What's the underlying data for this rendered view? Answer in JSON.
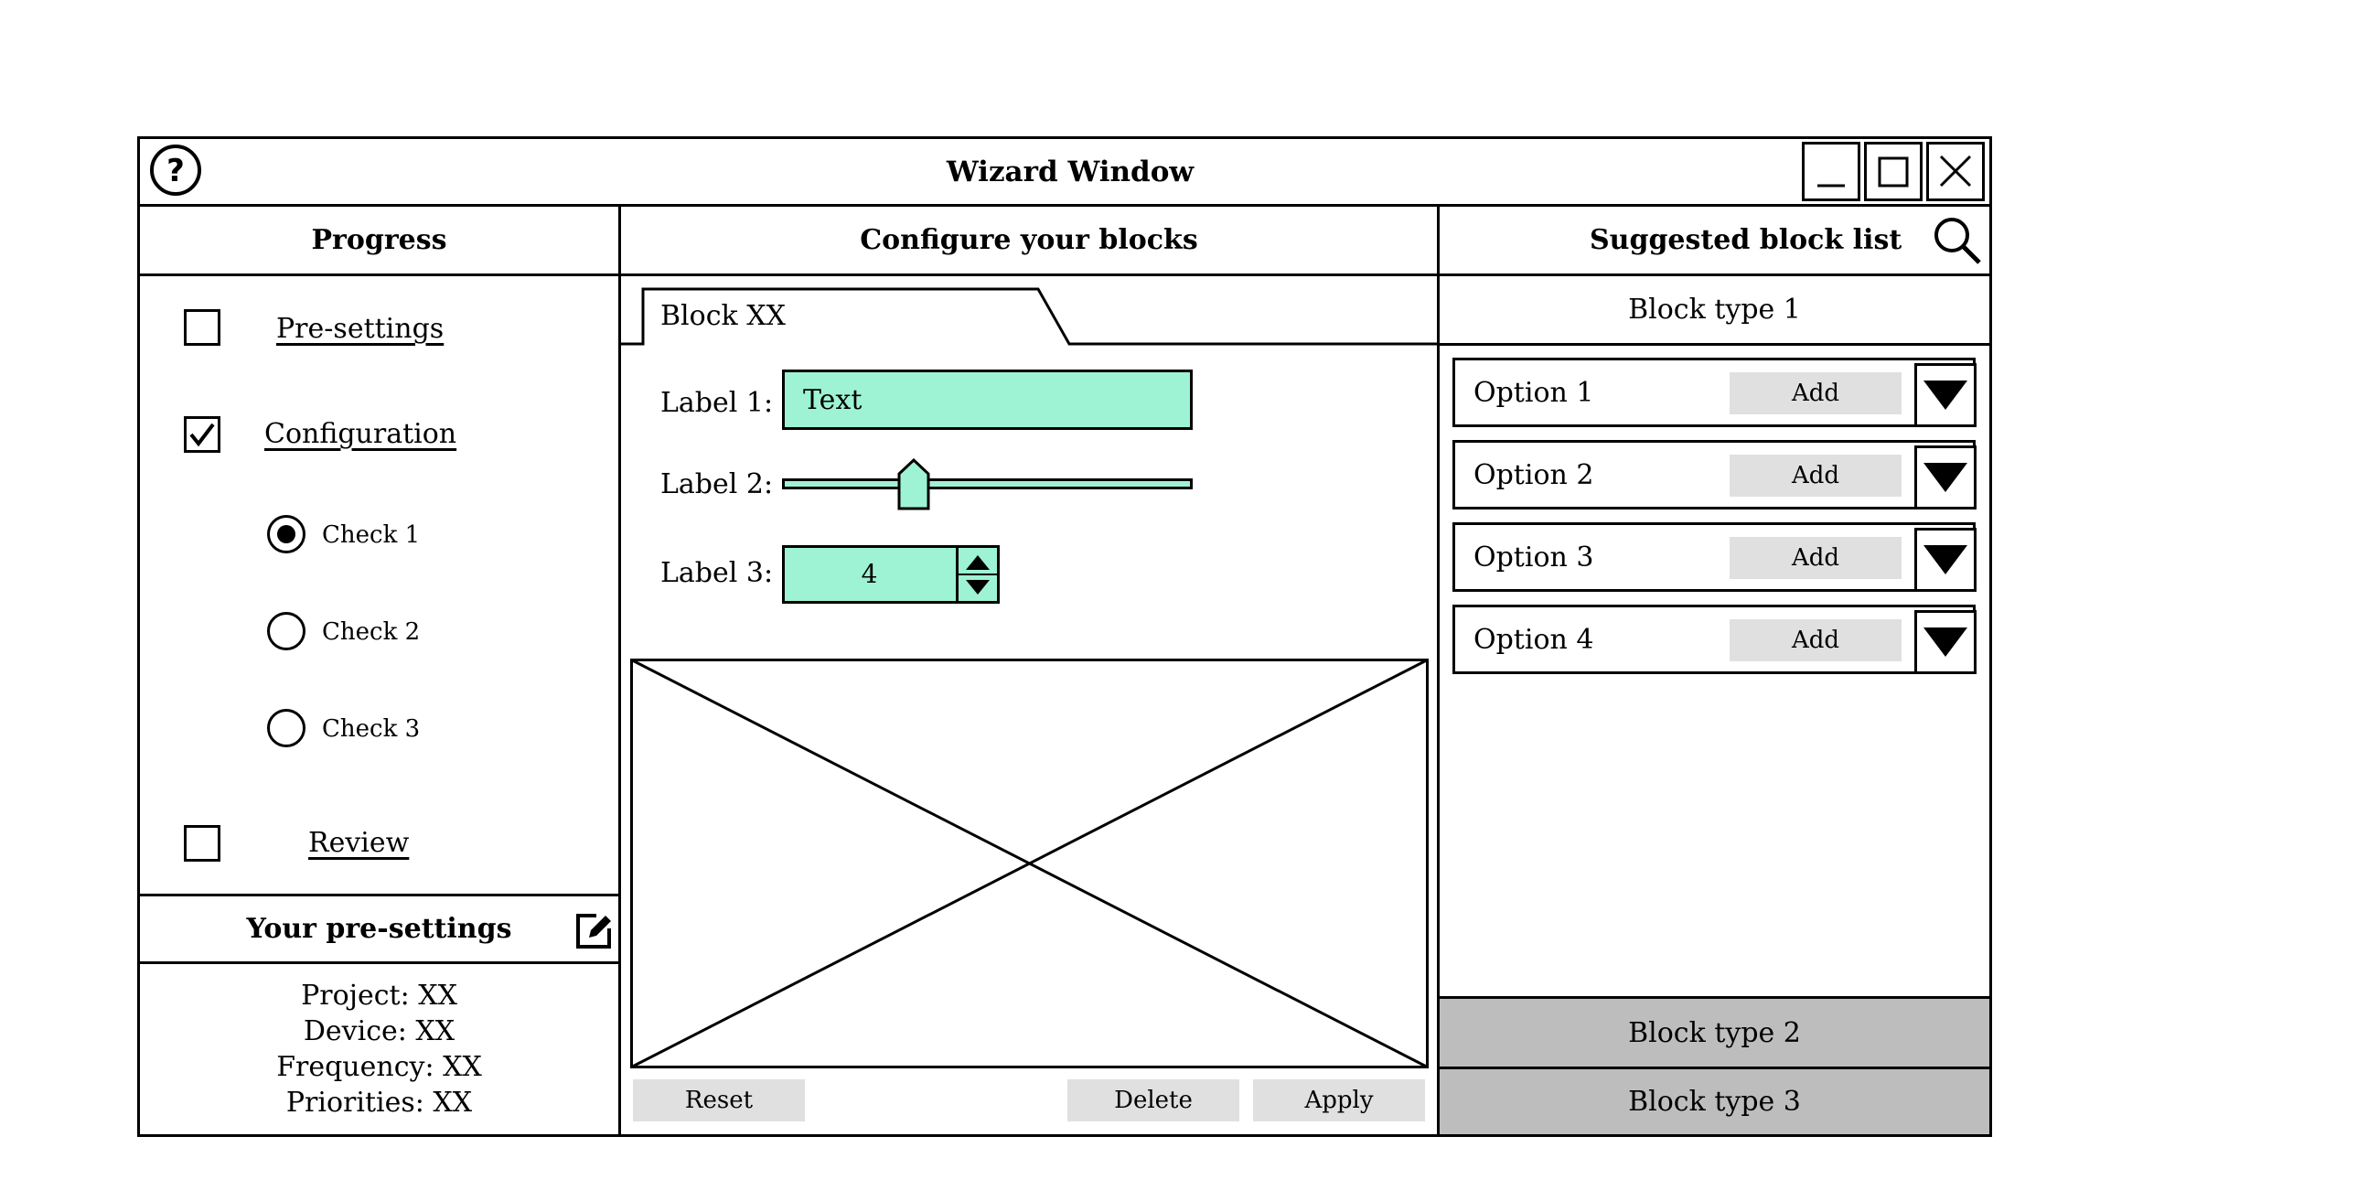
{
  "window": {
    "title": "Wizard Window"
  },
  "progress": {
    "heading": "Progress",
    "steps": [
      {
        "label": "Pre-settings",
        "checked": false
      },
      {
        "label": "Configuration",
        "checked": true
      },
      {
        "label": "Review",
        "checked": false
      }
    ],
    "checks": [
      {
        "label": "Check 1",
        "selected": true
      },
      {
        "label": "Check 2",
        "selected": false
      },
      {
        "label": "Check 3",
        "selected": false
      }
    ]
  },
  "presettings": {
    "heading": "Your pre-settings",
    "lines": [
      "Project: XX",
      "Device: XX",
      "Frequency: XX",
      "Priorities: XX"
    ]
  },
  "configure": {
    "heading": "Configure your blocks",
    "tab": "Block XX",
    "label1": "Label 1:",
    "text_value": "Text",
    "label2": "Label 2:",
    "slider_value": 0.32,
    "label3": "Label 3:",
    "stepper_value": "4",
    "reset": "Reset",
    "delete": "Delete",
    "apply": "Apply"
  },
  "suggested": {
    "heading": "Suggested block list",
    "type1": "Block type 1",
    "options": [
      {
        "label": "Option 1",
        "add": "Add"
      },
      {
        "label": "Option 2",
        "add": "Add"
      },
      {
        "label": "Option 3",
        "add": "Add"
      },
      {
        "label": "Option 4",
        "add": "Add"
      }
    ],
    "type2": "Block type 2",
    "type3": "Block type 3"
  },
  "colors": {
    "field": "#9ef3d5",
    "button": "#e0e0e0",
    "band": "#bdbdbd"
  }
}
